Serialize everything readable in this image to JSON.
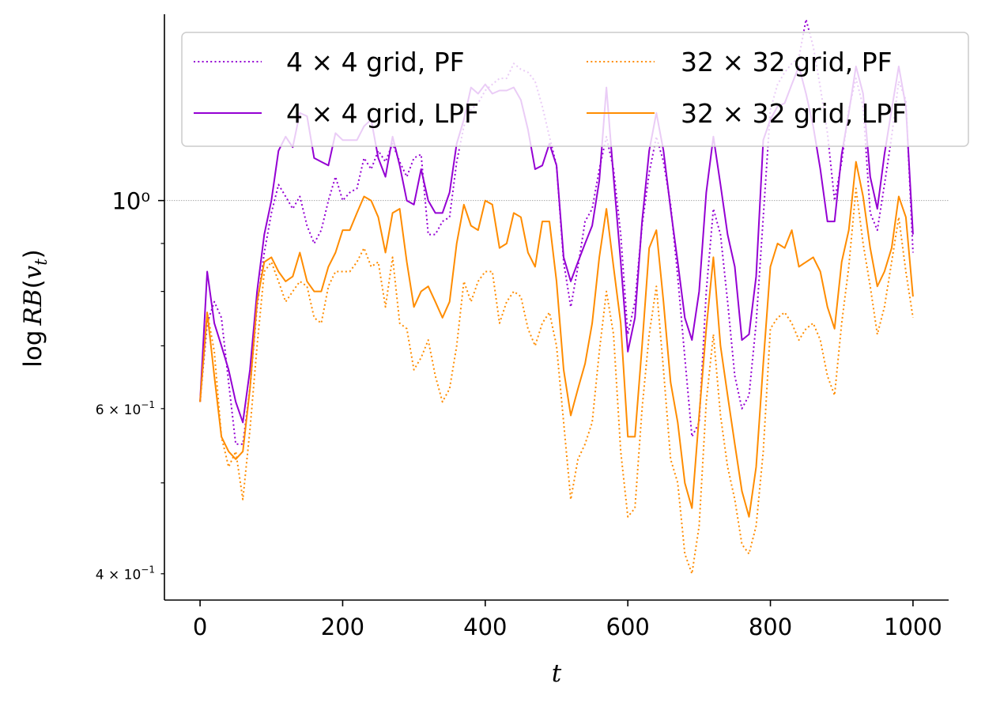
{
  "chart_data": {
    "type": "line",
    "xlabel": "t",
    "ylabel": "log RB(v_t)",
    "xlim": [
      -50,
      1050
    ],
    "ylim": [
      0.375,
      1.58
    ],
    "yscale": "log",
    "xticks": [
      0,
      200,
      400,
      600,
      800,
      1000
    ],
    "xtick_labels": [
      "0",
      "200",
      "400",
      "600",
      "800",
      "1000"
    ],
    "yticks_major": [
      1.0
    ],
    "ytick_major_labels": [
      "10⁰"
    ],
    "yticks_labeled_minor": [
      {
        "value": 0.6,
        "base": "6 × 10",
        "exp": "−1"
      },
      {
        "value": 0.4,
        "base": "4 × 10",
        "exp": "−1"
      }
    ],
    "yticks_minor": [
      0.5,
      0.7,
      0.8,
      0.9
    ],
    "reference_line": {
      "y": 1.0,
      "style": "dotted",
      "color": "#aaaaaa"
    },
    "legend": {
      "placement": "top",
      "columns": 2
    },
    "x": [
      0,
      10,
      20,
      30,
      40,
      50,
      60,
      70,
      80,
      90,
      100,
      110,
      120,
      130,
      140,
      150,
      160,
      170,
      180,
      190,
      200,
      210,
      220,
      230,
      240,
      250,
      260,
      270,
      280,
      290,
      300,
      310,
      320,
      330,
      340,
      350,
      360,
      370,
      380,
      390,
      400,
      410,
      420,
      430,
      440,
      450,
      460,
      470,
      480,
      490,
      500,
      510,
      520,
      530,
      540,
      550,
      560,
      570,
      580,
      590,
      600,
      610,
      620,
      630,
      640,
      650,
      660,
      670,
      680,
      690,
      700,
      710,
      720,
      730,
      740,
      750,
      760,
      770,
      780,
      790,
      800,
      810,
      820,
      830,
      840,
      850,
      860,
      870,
      880,
      890,
      900,
      910,
      920,
      930,
      940,
      950,
      960,
      970,
      980,
      990,
      1000
    ],
    "series": [
      {
        "name": "4 × 4 grid, PF",
        "label_left": "4 × 4",
        "label_right": " grid, PF",
        "color": "#9400d3",
        "style": "dotted",
        "values": [
          0.61,
          0.74,
          0.78,
          0.75,
          0.64,
          0.55,
          0.55,
          0.63,
          0.77,
          0.88,
          0.97,
          1.04,
          1.01,
          0.98,
          1.01,
          0.94,
          0.9,
          0.93,
          1.0,
          1.06,
          1.0,
          1.02,
          1.03,
          1.11,
          1.08,
          1.13,
          1.1,
          1.15,
          1.1,
          1.06,
          1.11,
          1.12,
          0.92,
          0.92,
          0.95,
          0.96,
          1.1,
          1.2,
          1.25,
          1.27,
          1.31,
          1.33,
          1.35,
          1.35,
          1.4,
          1.38,
          1.37,
          1.34,
          1.26,
          1.17,
          1.09,
          0.86,
          0.77,
          0.85,
          0.95,
          0.98,
          1.08,
          1.17,
          1.08,
          0.92,
          0.72,
          0.78,
          0.94,
          1.07,
          1.17,
          1.1,
          0.99,
          0.83,
          0.68,
          0.56,
          0.58,
          0.8,
          0.98,
          0.92,
          0.78,
          0.65,
          0.6,
          0.62,
          0.74,
          0.96,
          1.25,
          1.33,
          1.37,
          1.4,
          1.42,
          1.56,
          1.46,
          1.32,
          1.18,
          1.0,
          1.1,
          1.25,
          1.35,
          1.26,
          0.97,
          0.93,
          1.04,
          1.17,
          1.34,
          1.28,
          0.88
        ]
      },
      {
        "name": "4 × 4 grid, LPF",
        "label_left": "4 × 4",
        "label_right": " grid, LPF",
        "color": "#9400d3",
        "style": "solid",
        "values": [
          0.61,
          0.84,
          0.74,
          0.7,
          0.66,
          0.61,
          0.58,
          0.66,
          0.8,
          0.92,
          1.0,
          1.13,
          1.17,
          1.14,
          1.24,
          1.23,
          1.11,
          1.1,
          1.09,
          1.18,
          1.16,
          1.16,
          1.16,
          1.2,
          1.22,
          1.11,
          1.06,
          1.17,
          1.09,
          1.0,
          0.99,
          1.08,
          1.0,
          0.97,
          0.97,
          1.02,
          1.15,
          1.22,
          1.32,
          1.3,
          1.33,
          1.3,
          1.31,
          1.31,
          1.32,
          1.28,
          1.19,
          1.08,
          1.09,
          1.15,
          1.09,
          0.87,
          0.82,
          0.86,
          0.9,
          0.94,
          1.05,
          1.32,
          1.06,
          0.86,
          0.69,
          0.75,
          0.95,
          1.13,
          1.24,
          1.13,
          0.98,
          0.86,
          0.75,
          0.71,
          0.8,
          1.02,
          1.17,
          1.04,
          0.92,
          0.85,
          0.71,
          0.72,
          0.83,
          1.16,
          1.22,
          1.26,
          1.27,
          1.33,
          1.39,
          1.3,
          1.2,
          1.08,
          0.95,
          0.95,
          1.12,
          1.24,
          1.39,
          1.3,
          1.06,
          0.98,
          1.12,
          1.25,
          1.39,
          1.26,
          0.92
        ]
      },
      {
        "name": "32 × 32 grid, PF",
        "label_left": "32 × 32",
        "label_right": " grid, PF",
        "color": "#ff8c00",
        "style": "dotted",
        "values": [
          0.61,
          0.76,
          0.69,
          0.56,
          0.52,
          0.54,
          0.48,
          0.57,
          0.7,
          0.84,
          0.86,
          0.82,
          0.78,
          0.8,
          0.82,
          0.81,
          0.75,
          0.74,
          0.81,
          0.84,
          0.84,
          0.84,
          0.86,
          0.89,
          0.85,
          0.86,
          0.77,
          0.87,
          0.74,
          0.73,
          0.66,
          0.68,
          0.71,
          0.65,
          0.61,
          0.63,
          0.7,
          0.82,
          0.78,
          0.82,
          0.84,
          0.84,
          0.74,
          0.78,
          0.8,
          0.79,
          0.73,
          0.7,
          0.74,
          0.76,
          0.7,
          0.58,
          0.48,
          0.53,
          0.55,
          0.58,
          0.69,
          0.8,
          0.72,
          0.54,
          0.46,
          0.47,
          0.6,
          0.72,
          0.81,
          0.66,
          0.53,
          0.5,
          0.42,
          0.4,
          0.45,
          0.61,
          0.72,
          0.59,
          0.52,
          0.48,
          0.43,
          0.42,
          0.45,
          0.54,
          0.73,
          0.75,
          0.76,
          0.74,
          0.71,
          0.73,
          0.74,
          0.71,
          0.65,
          0.62,
          0.74,
          0.85,
          1.03,
          0.9,
          0.81,
          0.72,
          0.77,
          0.86,
          0.96,
          0.84,
          0.75
        ]
      },
      {
        "name": "32 × 32 grid, LPF",
        "label_left": "32 × 32",
        "label_right": " grid, LPF",
        "color": "#ff8c00",
        "style": "solid",
        "values": [
          0.61,
          0.76,
          0.65,
          0.56,
          0.54,
          0.53,
          0.54,
          0.63,
          0.78,
          0.86,
          0.87,
          0.84,
          0.82,
          0.83,
          0.88,
          0.82,
          0.8,
          0.8,
          0.85,
          0.88,
          0.93,
          0.93,
          0.97,
          1.01,
          1.0,
          0.96,
          0.88,
          0.97,
          0.98,
          0.86,
          0.77,
          0.8,
          0.81,
          0.78,
          0.75,
          0.78,
          0.9,
          0.99,
          0.94,
          0.93,
          1.0,
          0.99,
          0.89,
          0.9,
          0.97,
          0.96,
          0.88,
          0.85,
          0.95,
          0.95,
          0.82,
          0.66,
          0.59,
          0.63,
          0.67,
          0.74,
          0.87,
          0.98,
          0.85,
          0.74,
          0.56,
          0.56,
          0.7,
          0.89,
          0.93,
          0.78,
          0.64,
          0.58,
          0.5,
          0.47,
          0.59,
          0.73,
          0.87,
          0.7,
          0.62,
          0.55,
          0.49,
          0.46,
          0.52,
          0.67,
          0.85,
          0.9,
          0.89,
          0.93,
          0.85,
          0.86,
          0.87,
          0.84,
          0.77,
          0.73,
          0.86,
          0.93,
          1.1,
          1.01,
          0.89,
          0.81,
          0.84,
          0.89,
          1.01,
          0.96,
          0.79
        ]
      }
    ]
  }
}
